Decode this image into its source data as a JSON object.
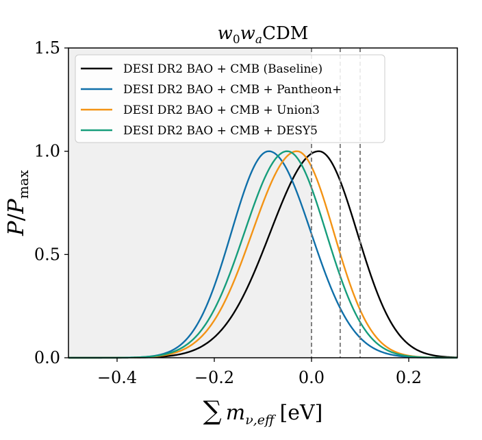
{
  "chart_data": {
    "type": "line",
    "title": "w0waCDM",
    "title_parts": {
      "w": "w",
      "sub0": "0",
      "w2": "w",
      "suba": "a",
      "rest": "CDM"
    },
    "xlabel": "Σ m_ν,eff [eV]",
    "xlabel_parts": {
      "sum": "∑",
      "m": "m",
      "sub": "ν,eff",
      "lb": "[",
      "unit": "eV",
      "rb": "]"
    },
    "ylabel": "P/P_max",
    "ylabel_parts": {
      "p": "P",
      "slash": "/",
      "pmax": "P",
      "sub": "max"
    },
    "xlim": [
      -0.5,
      0.3
    ],
    "ylim": [
      0.0,
      1.5
    ],
    "xticks": [
      -0.4,
      -0.2,
      0.0,
      0.2
    ],
    "xtick_labels": [
      "−0.4",
      "−0.2",
      "0.0",
      "0.2"
    ],
    "yticks": [
      0.0,
      0.5,
      1.0,
      1.5
    ],
    "ytick_labels": [
      "0.0",
      "0.5",
      "1.0",
      "1.5"
    ],
    "shaded_region": {
      "x_from": -0.5,
      "x_to": 0.0,
      "color": "#f0f0f0"
    },
    "vlines": [
      {
        "x": 0.0,
        "color": "#808080"
      },
      {
        "x": 0.059,
        "color": "#808080"
      },
      {
        "x": 0.1,
        "color": "#808080"
      }
    ],
    "legend_position": "top-left",
    "series": [
      {
        "name": "DESI DR2 BAO + CMB (Baseline)",
        "color": "#000000",
        "peak": 0.015,
        "sigma_left": 0.1,
        "sigma_right": 0.079
      },
      {
        "name": "DESI DR2 BAO + CMB + Pantheon+",
        "color": "#0f6fa9",
        "peak": -0.088,
        "sigma_left": 0.077,
        "sigma_right": 0.087
      },
      {
        "name": "DESI DR2 BAO + CMB + Union3",
        "color": "#f39314",
        "peak": -0.03,
        "sigma_left": 0.092,
        "sigma_right": 0.076
      },
      {
        "name": "DESI DR2 BAO + CMB + DESY5",
        "color": "#169d7b",
        "peak": -0.05,
        "sigma_left": 0.088,
        "sigma_right": 0.08
      }
    ]
  }
}
